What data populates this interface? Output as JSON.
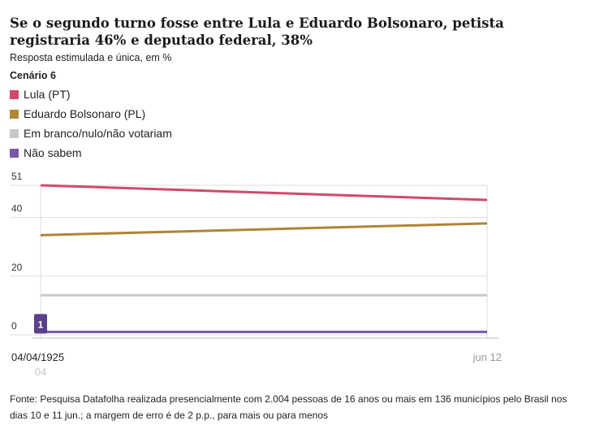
{
  "header": {
    "title": "Se o segundo turno fosse entre Lula e Eduardo Bolsonaro, petista registraria 46% e deputado federal, 38%",
    "subtitle": "Resposta estimulada e única, em %",
    "scenario": "Cenário 6"
  },
  "footer": {
    "source": "Fonte: Pesquisa Datafolha realizada presencialmente com 2.004 pessoas de 16 anos ou mais em 136 municípios pelo Brasil nos dias 10 e 11 jun.; a margem de erro é de 2 p.p., para mais ou para menos"
  },
  "chart_data": {
    "type": "line",
    "x": [
      "04/04/1925",
      "jun 12"
    ],
    "x_sublabel": "04",
    "ylim": [
      0,
      51
    ],
    "yticks": [
      0,
      20,
      40,
      51
    ],
    "grid": true,
    "legend_position": "top-left",
    "series": [
      {
        "name": "Lula (PT)",
        "color": "#d24a6b",
        "values": [
          51,
          46
        ]
      },
      {
        "name": "Eduardo Bolsonaro (PL)",
        "color": "#b08536",
        "values": [
          34,
          38
        ]
      },
      {
        "name": "Em branco/nulo/não votariam",
        "color": "#c8c8c8",
        "values": [
          13.5,
          13.5
        ]
      },
      {
        "name": "Não sabem",
        "color": "#7a58a6",
        "values": [
          1,
          1
        ]
      }
    ],
    "annotation": {
      "series": "Não sabem",
      "point": 0,
      "label": "1",
      "color": "#5b3f8a"
    }
  }
}
